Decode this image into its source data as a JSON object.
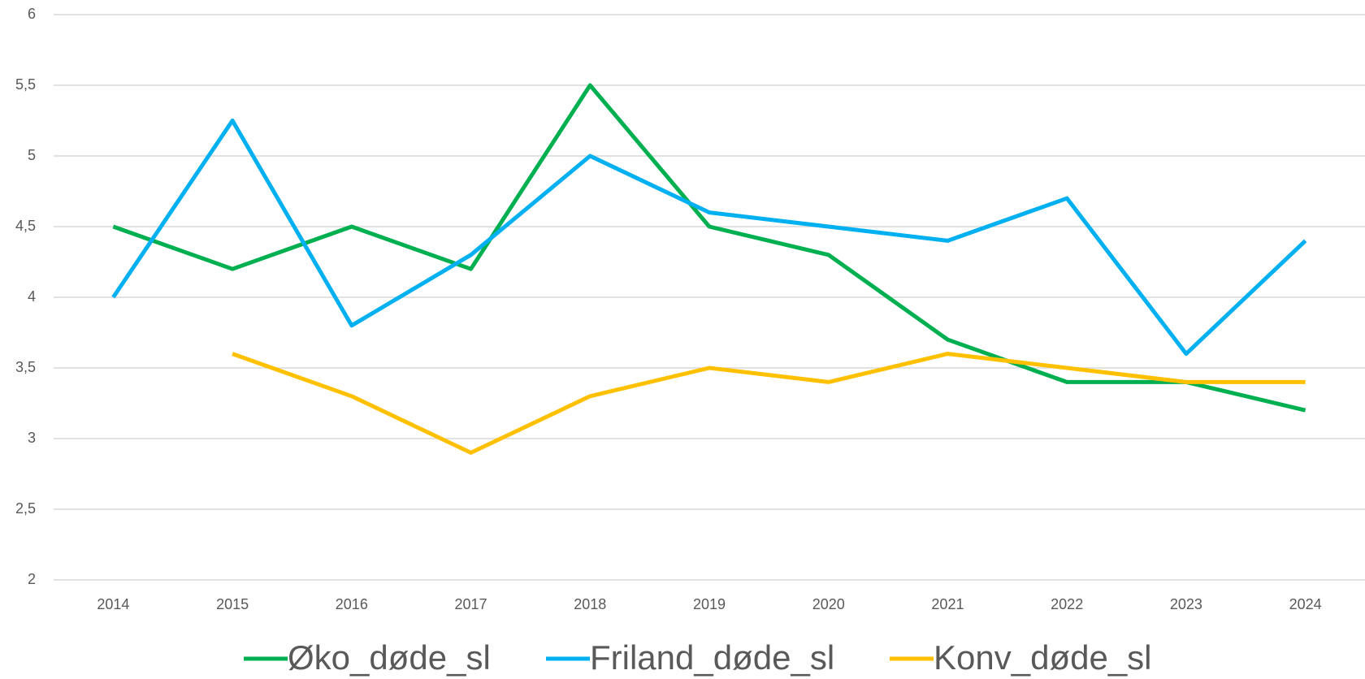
{
  "chart_data": {
    "type": "line",
    "categories": [
      "2014",
      "2015",
      "2016",
      "2017",
      "2018",
      "2019",
      "2020",
      "2021",
      "2022",
      "2023",
      "2024"
    ],
    "series": [
      {
        "name": "Øko_døde_sl",
        "color": "#00b050",
        "values": [
          4.5,
          4.2,
          4.5,
          4.2,
          5.5,
          4.5,
          4.3,
          3.7,
          3.4,
          3.4,
          3.2
        ]
      },
      {
        "name": "Friland_døde_sl",
        "color": "#00b0f0",
        "values": [
          4.0,
          5.25,
          3.8,
          4.3,
          5.0,
          4.6,
          4.5,
          4.4,
          4.7,
          3.6,
          4.4
        ]
      },
      {
        "name": "Konv_døde_sl",
        "color": "#ffc000",
        "values": [
          null,
          3.6,
          3.3,
          2.9,
          3.3,
          3.5,
          3.4,
          3.6,
          3.5,
          3.4,
          3.4
        ]
      }
    ],
    "ylim": [
      2,
      6
    ],
    "yticks": [
      2,
      {
        "value": 2.5,
        "label": "2,5"
      },
      3,
      {
        "value": 3.5,
        "label": "3,5"
      },
      4,
      {
        "value": 4.5,
        "label": "4,5"
      },
      5,
      {
        "value": 5.5,
        "label": "5,5"
      },
      6
    ],
    "grid": true,
    "legend": "bottom"
  }
}
